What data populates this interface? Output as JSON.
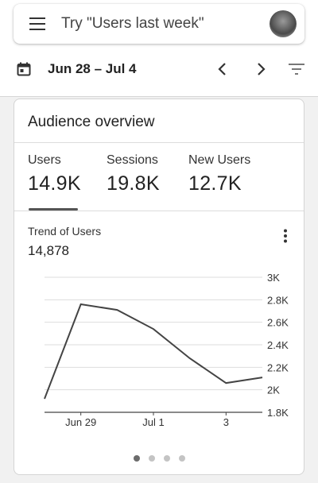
{
  "search": {
    "placeholder": "Try \"Users last week\""
  },
  "date_range": {
    "label": "Jun 28 – Jul 4"
  },
  "card": {
    "title": "Audience overview",
    "metrics": [
      {
        "label": "Users",
        "value": "14.9K"
      },
      {
        "label": "Sessions",
        "value": "19.8K"
      },
      {
        "label": "New Users",
        "value": "12.7K"
      }
    ],
    "selected_metric": "Users",
    "trend_title": "Trend of Users",
    "trend_value": "14,878",
    "pagination": {
      "pages": 4,
      "current": 1
    }
  },
  "chart_data": {
    "type": "line",
    "x": [
      "Jun 28",
      "Jun 29",
      "Jun 30",
      "Jul 1",
      "Jul 2",
      "Jul 3",
      "Jul 4"
    ],
    "x_tick_labels": [
      "Jun 29",
      "Jul 1",
      "3"
    ],
    "y_tick_labels": [
      "3K",
      "2.8K",
      "2.6K",
      "2.4K",
      "2.2K",
      "2K",
      "1.8K"
    ],
    "series": [
      {
        "values": [
          1920,
          2760,
          2710,
          2540,
          2280,
          2060,
          2110
        ]
      }
    ],
    "ylim": [
      1800,
      3000
    ],
    "grid": true,
    "line_color": "#444444"
  }
}
